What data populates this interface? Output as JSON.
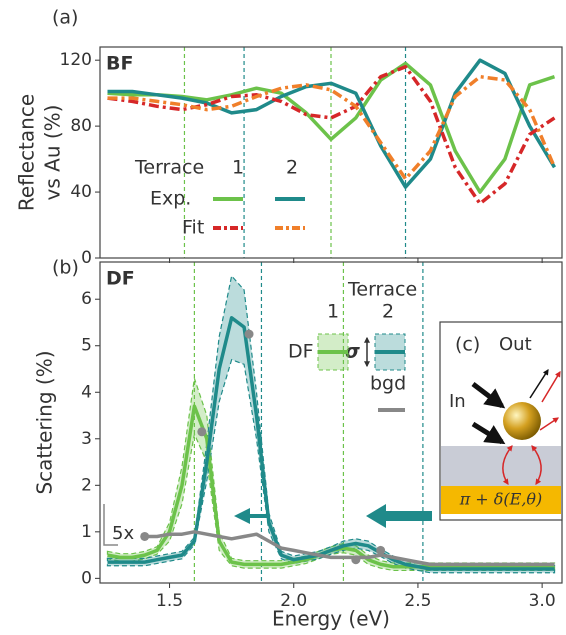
{
  "chart_data": [
    {
      "type": "line",
      "panel": "(a)",
      "tag": "BF",
      "ylabel": [
        "Reflectance",
        "vs Au (%)"
      ],
      "xlim": [
        1.22,
        3.08
      ],
      "xticks": [
        1.5,
        2,
        2.5,
        3
      ],
      "ylim": [
        0,
        128
      ],
      "yticks": [
        0,
        40,
        80,
        120
      ],
      "x": [
        1.25,
        1.35,
        1.45,
        1.55,
        1.65,
        1.75,
        1.85,
        1.95,
        2.05,
        2.15,
        2.25,
        2.35,
        2.45,
        2.55,
        2.65,
        2.75,
        2.85,
        2.95,
        3.05
      ],
      "series": [
        {
          "color": "#6cc24a",
          "style": "solid",
          "values": [
            100,
            99,
            99,
            98,
            96,
            99,
            103,
            100,
            88,
            72,
            85,
            108,
            118,
            105,
            65,
            40,
            60,
            105,
            110
          ]
        },
        {
          "color": "#1f8a8a",
          "style": "solid",
          "values": [
            101,
            101,
            99,
            97,
            94,
            88,
            90,
            98,
            104,
            106,
            100,
            68,
            43,
            60,
            100,
            120,
            112,
            80,
            55
          ]
        },
        {
          "color": "#d62728",
          "style": "dash-dot",
          "values": [
            97,
            95,
            92,
            90,
            93,
            98,
            99,
            95,
            87,
            85,
            92,
            110,
            116,
            95,
            55,
            33,
            45,
            75,
            85
          ]
        },
        {
          "color": "#f07f2a",
          "style": "dash-dot",
          "values": [
            97,
            97,
            95,
            93,
            90,
            92,
            98,
            103,
            105,
            102,
            92,
            70,
            48,
            65,
            98,
            110,
            108,
            90,
            55
          ]
        }
      ],
      "legend": {
        "title": "Terrace",
        "columns": [
          "1",
          "2"
        ],
        "rows": [
          "Exp.",
          "Fit"
        ]
      },
      "vlines": {
        "x": [
          1.56,
          1.8,
          2.15,
          2.45
        ],
        "colors": [
          "#6cc24a",
          "#1f8a8a",
          "#6cc24a",
          "#1f8a8a"
        ]
      }
    },
    {
      "type": "line",
      "panel": "(b)",
      "tag": "DF",
      "ylabel": [
        "Scattering (%)"
      ],
      "xlabel": "Energy (eV)",
      "xlim": [
        1.22,
        3.08
      ],
      "xticks": [
        1.5,
        {
          "value": 2,
          "label": "2.0"
        },
        2.5,
        {
          "value": 3,
          "label": "3.0"
        }
      ],
      "ylim": [
        -0.1,
        6.8
      ],
      "yticks": [
        0,
        1,
        2,
        3,
        4,
        5,
        6
      ],
      "x": [
        1.25,
        1.3,
        1.35,
        1.4,
        1.45,
        1.5,
        1.55,
        1.6,
        1.65,
        1.7,
        1.75,
        1.8,
        1.85,
        1.9,
        1.95,
        2,
        2.05,
        2.1,
        2.15,
        2.2,
        2.25,
        2.3,
        2.35,
        2.4,
        2.45,
        2.5,
        2.55,
        2.6,
        2.65,
        2.7,
        2.75,
        2.8,
        2.85,
        2.9,
        2.95,
        3,
        3.05
      ],
      "series": [
        {
          "color": "#6cc24a",
          "style": "solid",
          "values": [
            0.5,
            0.45,
            0.45,
            0.5,
            0.6,
            1.0,
            2.0,
            3.7,
            3.0,
            0.8,
            0.35,
            0.3,
            0.3,
            0.3,
            0.3,
            0.35,
            0.4,
            0.5,
            0.6,
            0.65,
            0.6,
            0.4,
            0.3,
            0.25,
            0.25,
            0.25,
            0.25,
            0.25,
            0.25,
            0.25,
            0.25,
            0.25,
            0.25,
            0.25,
            0.25,
            0.25,
            0.25
          ],
          "sigma": [
            0.08,
            0.08,
            0.08,
            0.08,
            0.08,
            0.2,
            0.4,
            0.6,
            0.5,
            0.2,
            0.08,
            0.08,
            0.08,
            0.08,
            0.08,
            0.08,
            0.08,
            0.08,
            0.08,
            0.1,
            0.1,
            0.1,
            0.08,
            0.08,
            0.08,
            0.08,
            0.08,
            0.08,
            0.08,
            0.08,
            0.08,
            0.08,
            0.08,
            0.08,
            0.08,
            0.08,
            0.08
          ]
        },
        {
          "color": "#1f8a8a",
          "style": "solid",
          "values": [
            0.35,
            0.35,
            0.35,
            0.35,
            0.4,
            0.45,
            0.5,
            0.8,
            2.5,
            4.5,
            5.6,
            5.4,
            3.5,
            1.2,
            0.5,
            0.4,
            0.45,
            0.5,
            0.6,
            0.7,
            0.75,
            0.7,
            0.55,
            0.4,
            0.3,
            0.25,
            0.2,
            0.2,
            0.2,
            0.2,
            0.2,
            0.2,
            0.2,
            0.2,
            0.2,
            0.2,
            0.2
          ],
          "sigma": [
            0.08,
            0.08,
            0.08,
            0.08,
            0.08,
            0.08,
            0.08,
            0.08,
            0.4,
            0.7,
            0.9,
            0.8,
            0.5,
            0.2,
            0.08,
            0.08,
            0.08,
            0.08,
            0.08,
            0.1,
            0.1,
            0.1,
            0.08,
            0.08,
            0.08,
            0.08,
            0.08,
            0.08,
            0.08,
            0.08,
            0.08,
            0.08,
            0.08,
            0.08,
            0.08,
            0.08,
            0.08
          ]
        },
        {
          "color": "#888888",
          "style": "solid",
          "values": [
            null,
            null,
            null,
            0.9,
            0.9,
            0.95,
            0.95,
            1.0,
            0.95,
            0.9,
            0.85,
            0.9,
            0.95,
            0.8,
            0.65,
            0.6,
            0.55,
            0.5,
            0.45,
            0.45,
            0.45,
            0.45,
            0.5,
            0.45,
            0.4,
            0.35,
            0.3,
            0.3,
            0.3,
            0.3,
            0.3,
            0.3,
            0.3,
            0.3,
            0.3,
            0.3,
            0.3
          ]
        }
      ],
      "points": {
        "color": "#888888",
        "x": [
          1.4,
          1.63,
          1.82,
          2.25,
          2.35
        ],
        "y": [
          0.9,
          3.15,
          5.25,
          0.4,
          0.6
        ]
      },
      "legend": {
        "title": "Terrace",
        "columns": [
          "1",
          "2"
        ],
        "row": "DF",
        "sigma": "σ",
        "bgd": "bgd"
      },
      "scale_note": "5x",
      "vlines": {
        "x": [
          1.6,
          1.87,
          2.2,
          2.52
        ],
        "colors": [
          "#6cc24a",
          "#1f8a8a",
          "#6cc24a",
          "#1f8a8a"
        ]
      },
      "inset": {
        "label": "(c)",
        "out": "Out",
        "in": "In",
        "formula": "π + δ(E,θ)"
      }
    }
  ]
}
